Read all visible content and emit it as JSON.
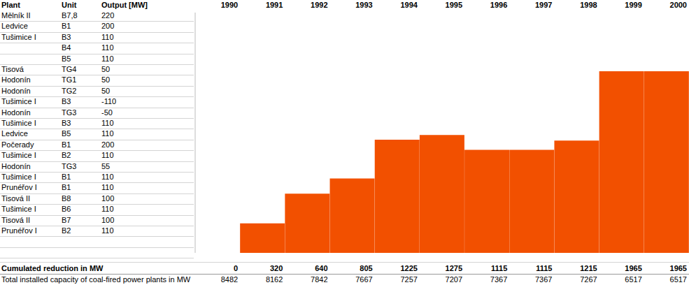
{
  "table": {
    "columns": [
      "Plant",
      "Unit",
      "Output [MW]"
    ],
    "rows": [
      [
        "Mělník II",
        "B7,8",
        220
      ],
      [
        "Ledvice",
        "B1",
        200
      ],
      [
        "Tušimice I",
        "B3",
        110
      ],
      [
        null,
        "B4",
        110
      ],
      [
        null,
        "B5",
        110
      ],
      [
        "Tisová",
        "TG4",
        50
      ],
      [
        "Hodonín",
        "TG1",
        50
      ],
      [
        "Hodonín",
        "TG2",
        50
      ],
      [
        "Tušimice I",
        "B3",
        -110
      ],
      [
        "Hodonín",
        "TG3",
        -50
      ],
      [
        "Tušimice I",
        "B3",
        110
      ],
      [
        "Ledvice",
        "B5",
        110
      ],
      [
        "Počerady",
        "B1",
        200
      ],
      [
        "Tušimice I",
        "B2",
        110
      ],
      [
        "Hodonín",
        "TG3",
        55
      ],
      [
        "Tušimice I",
        "B1",
        110
      ],
      [
        "Prunéřov I",
        "B1",
        110
      ],
      [
        "Tisová II",
        "B8",
        100
      ],
      [
        "Tušimice I",
        "B6",
        110
      ],
      [
        "Tisová II",
        "B7",
        100
      ],
      [
        "Prunéřov I",
        "B2",
        110
      ]
    ]
  },
  "chart_data": {
    "type": "bar",
    "categories": [
      "1990",
      "1991",
      "1992",
      "1993",
      "1994",
      "1995",
      "1996",
      "1997",
      "1998",
      "1999",
      "2000"
    ],
    "series": [
      {
        "name": "Cumulated reduction in MW",
        "color": "#f25000",
        "values": [
          0,
          320,
          640,
          805,
          1225,
          1275,
          1115,
          1115,
          1215,
          1965,
          1965
        ]
      }
    ],
    "ylim": [
      0,
      2600
    ],
    "tick_labels": false,
    "data_labels": true
  },
  "footer": {
    "label": "Total installed capacity of coal-fired power plants in MW",
    "values": [
      8482,
      8162,
      7842,
      7667,
      7257,
      7207,
      7367,
      7367,
      7267,
      6517,
      6517
    ]
  }
}
